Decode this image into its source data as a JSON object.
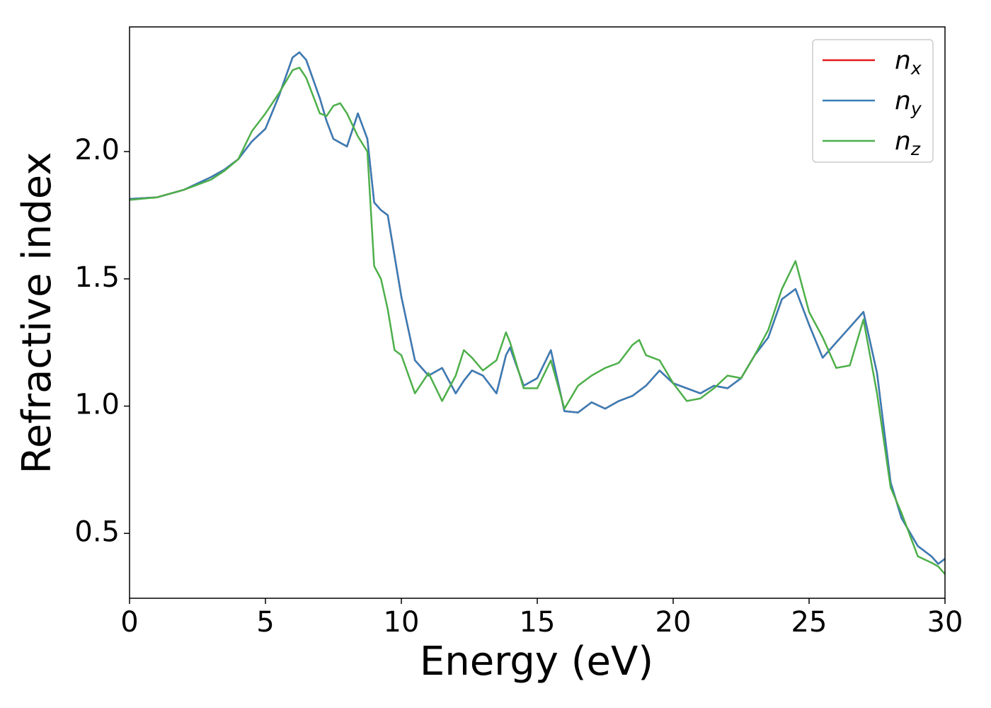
{
  "chart_data": {
    "type": "line",
    "xlabel": "Energy (eV)",
    "ylabel": "Refractive index",
    "xlim": [
      0,
      30
    ],
    "ylim": [
      0.245,
      2.49
    ],
    "xticks": [
      0,
      5,
      10,
      15,
      20,
      25,
      30
    ],
    "yticks": [
      0.5,
      {
        "value": 1.0,
        "label": "1.0"
      },
      1.5,
      {
        "value": 2.0,
        "label": "2.0"
      }
    ],
    "grid": false,
    "legend": "upper right",
    "x": [
      0,
      1,
      2,
      3,
      3.5,
      4,
      4.5,
      5,
      5.5,
      6,
      6.25,
      6.5,
      7,
      7.25,
      7.5,
      7.75,
      8,
      8.4,
      8.75,
      9,
      9.25,
      9.5,
      9.75,
      10,
      10.5,
      11,
      11.5,
      12,
      12.3,
      12.6,
      13,
      13.5,
      13.85,
      14,
      14.5,
      15,
      15.5,
      16,
      16.5,
      17,
      17.5,
      18,
      18.5,
      18.75,
      19,
      19.5,
      20,
      20.5,
      21,
      21.5,
      22,
      22.5,
      23,
      23.5,
      24,
      24.5,
      25,
      25.5,
      26,
      26.5,
      27,
      27.5,
      28,
      28.4,
      29,
      29.5,
      29.75,
      30
    ],
    "series": [
      {
        "name": "nx",
        "color": "#e41a1c",
        "values": [
          1.814,
          1.82,
          1.85,
          1.9,
          1.93,
          1.97,
          2.04,
          2.09,
          2.22,
          2.37,
          2.39,
          2.36,
          2.21,
          2.12,
          2.05,
          2.035,
          2.02,
          2.15,
          2.05,
          1.8,
          1.77,
          1.75,
          1.59,
          1.43,
          1.18,
          1.12,
          1.15,
          1.05,
          1.1,
          1.14,
          1.12,
          1.05,
          1.2,
          1.23,
          1.08,
          1.11,
          1.22,
          0.98,
          0.975,
          1.015,
          0.99,
          1.02,
          1.04,
          1.06,
          1.08,
          1.14,
          1.09,
          1.07,
          1.05,
          1.08,
          1.07,
          1.11,
          1.2,
          1.27,
          1.42,
          1.46,
          1.32,
          1.19,
          1.25,
          1.31,
          1.37,
          1.13,
          0.7,
          0.56,
          0.45,
          0.41,
          0.38,
          0.4
        ]
      },
      {
        "name": "ny",
        "color": "#377eb8",
        "values": [
          1.814,
          1.82,
          1.85,
          1.9,
          1.93,
          1.97,
          2.04,
          2.09,
          2.22,
          2.37,
          2.39,
          2.36,
          2.21,
          2.12,
          2.05,
          2.035,
          2.02,
          2.15,
          2.05,
          1.8,
          1.77,
          1.75,
          1.59,
          1.43,
          1.18,
          1.12,
          1.15,
          1.05,
          1.1,
          1.14,
          1.12,
          1.05,
          1.2,
          1.23,
          1.08,
          1.11,
          1.22,
          0.98,
          0.975,
          1.015,
          0.99,
          1.02,
          1.04,
          1.06,
          1.08,
          1.14,
          1.09,
          1.07,
          1.05,
          1.08,
          1.07,
          1.11,
          1.2,
          1.27,
          1.42,
          1.46,
          1.32,
          1.19,
          1.25,
          1.31,
          1.37,
          1.13,
          0.7,
          0.56,
          0.45,
          0.41,
          0.38,
          0.4
        ]
      },
      {
        "name": "nz",
        "color": "#4daf4a",
        "values": [
          1.81,
          1.82,
          1.85,
          1.89,
          1.925,
          1.97,
          2.08,
          2.15,
          2.23,
          2.32,
          2.33,
          2.29,
          2.15,
          2.14,
          2.18,
          2.19,
          2.15,
          2.06,
          2.0,
          1.55,
          1.5,
          1.38,
          1.22,
          1.2,
          1.05,
          1.13,
          1.02,
          1.12,
          1.22,
          1.19,
          1.14,
          1.18,
          1.29,
          1.25,
          1.07,
          1.07,
          1.18,
          0.99,
          1.08,
          1.12,
          1.15,
          1.17,
          1.24,
          1.26,
          1.2,
          1.18,
          1.09,
          1.02,
          1.03,
          1.07,
          1.12,
          1.11,
          1.2,
          1.3,
          1.46,
          1.57,
          1.37,
          1.27,
          1.15,
          1.16,
          1.34,
          1.05,
          0.68,
          0.58,
          0.41,
          0.385,
          0.37,
          0.34
        ]
      }
    ]
  }
}
